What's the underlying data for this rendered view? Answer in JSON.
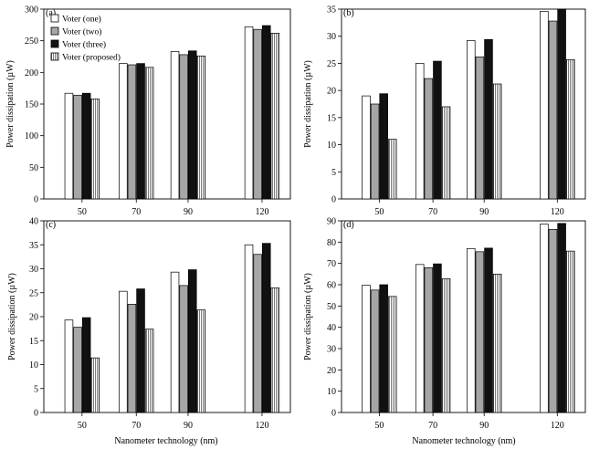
{
  "chart_data": {
    "type": "bar",
    "xlabel": "Nanometer technology (nm)",
    "ylabel": "Power dissipation (µW)",
    "categories": [
      "50",
      "70",
      "90",
      "120"
    ],
    "legend": {
      "placement": "top-left of panel (a)",
      "entries": [
        "Voter (one)",
        "Voter (two)",
        "Voter (three)",
        "Voter (proposed)"
      ]
    },
    "series_styles": [
      {
        "name": "Voter (one)",
        "fill": "#ffffff",
        "pattern": "solid"
      },
      {
        "name": "Voter (two)",
        "fill": "#a6a6a6",
        "pattern": "solid"
      },
      {
        "name": "Voter (three)",
        "fill": "#111111",
        "pattern": "solid"
      },
      {
        "name": "Voter (proposed)",
        "fill": "#ffffff",
        "pattern": "vertical-lines"
      }
    ],
    "panels": [
      {
        "label": "(a)",
        "ylim": [
          0,
          300
        ],
        "yticks": [
          0,
          50,
          100,
          150,
          200,
          250,
          300
        ],
        "series": [
          {
            "name": "Voter (one)",
            "values": [
              167,
              214,
              233,
              272
            ]
          },
          {
            "name": "Voter (two)",
            "values": [
              164,
              212,
              228,
              268
            ]
          },
          {
            "name": "Voter (three)",
            "values": [
              167,
              214,
              234,
              274
            ]
          },
          {
            "name": "Voter (proposed)",
            "values": [
              158,
              208,
              226,
              262
            ]
          }
        ]
      },
      {
        "label": "(b)",
        "ylim": [
          0,
          35
        ],
        "yticks": [
          0,
          5,
          10,
          15,
          20,
          25,
          30,
          35
        ],
        "series": [
          {
            "name": "Voter (one)",
            "values": [
              19,
              25,
              29.2,
              34.6
            ]
          },
          {
            "name": "Voter (two)",
            "values": [
              17.5,
              22.2,
              26.2,
              32.8
            ]
          },
          {
            "name": "Voter (three)",
            "values": [
              19.4,
              25.4,
              29.4,
              35
            ]
          },
          {
            "name": "Voter (proposed)",
            "values": [
              11,
              17,
              21.2,
              25.7
            ]
          }
        ]
      },
      {
        "label": "(c)",
        "ylim": [
          0,
          40
        ],
        "yticks": [
          0,
          5,
          10,
          15,
          20,
          25,
          30,
          35,
          40
        ],
        "series": [
          {
            "name": "Voter (one)",
            "values": [
              19.3,
              25.3,
              29.3,
              35
            ]
          },
          {
            "name": "Voter (two)",
            "values": [
              17.8,
              22.6,
              26.5,
              33
            ]
          },
          {
            "name": "Voter (three)",
            "values": [
              19.8,
              25.8,
              29.8,
              35.3
            ]
          },
          {
            "name": "Voter (proposed)",
            "values": [
              11.4,
              17.4,
              21.4,
              26
            ]
          }
        ]
      },
      {
        "label": "(d)",
        "ylim": [
          0,
          90
        ],
        "yticks": [
          0,
          10,
          20,
          30,
          40,
          50,
          60,
          70,
          80,
          90
        ],
        "series": [
          {
            "name": "Voter (one)",
            "values": [
              59.8,
              69.5,
              77,
              88.5
            ]
          },
          {
            "name": "Voter (two)",
            "values": [
              57.5,
              68,
              75.5,
              86
            ]
          },
          {
            "name": "Voter (three)",
            "values": [
              60,
              69.8,
              77.2,
              88.8
            ]
          },
          {
            "name": "Voter (proposed)",
            "values": [
              54.5,
              62.8,
              65,
              75.8
            ]
          }
        ]
      }
    ]
  }
}
